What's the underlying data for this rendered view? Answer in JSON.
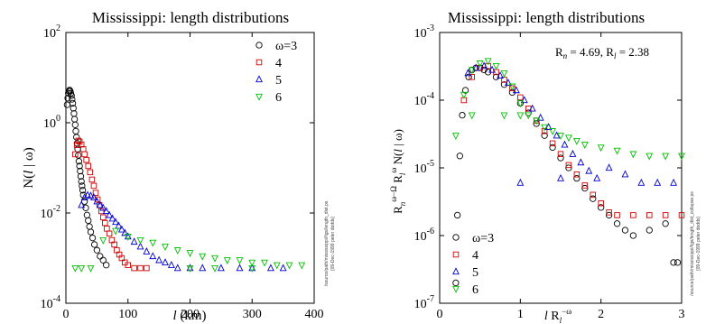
{
  "chart_data": [
    {
      "type": "scatter",
      "title": "Mississippi: length distributions",
      "xlabel": "l (km)",
      "ylabel": "N(l | ω)",
      "xlim": [
        0,
        400
      ],
      "ylim": [
        0.0001,
        100
      ],
      "yscale": "log",
      "xticks": [
        "0",
        "100",
        "200",
        "300",
        "400"
      ],
      "yticks": [
        {
          "base": "10",
          "exp": "2"
        },
        {
          "base": "10",
          "exp": "0"
        },
        {
          "base": "10",
          "exp": "-2"
        },
        {
          "base": "10",
          "exp": "-4"
        }
      ],
      "legend": "top-right",
      "side_notes": [
        "/source/path/mississippi/figs/length_dist.ps",
        "[09-Dec-1999 peter dodds]"
      ],
      "series": [
        {
          "name": "ω=3",
          "label": "ω=3",
          "marker": "circle",
          "color": "#000000",
          "points": [
            [
              2,
              2.5
            ],
            [
              3,
              3.5
            ],
            [
              4,
              4.5
            ],
            [
              5,
              5.0
            ],
            [
              6,
              5.3
            ],
            [
              7,
              5.0
            ],
            [
              8,
              4.5
            ],
            [
              9,
              4.0
            ],
            [
              10,
              3.3
            ],
            [
              11,
              2.7
            ],
            [
              12,
              2.1
            ],
            [
              13,
              1.6
            ],
            [
              14,
              1.2
            ],
            [
              15,
              0.9
            ],
            [
              16,
              0.65
            ],
            [
              17,
              0.48
            ],
            [
              18,
              0.35
            ],
            [
              19,
              0.26
            ],
            [
              20,
              0.19
            ],
            [
              21,
              0.14
            ],
            [
              22,
              0.11
            ],
            [
              23,
              0.085
            ],
            [
              24,
              0.065
            ],
            [
              25,
              0.05
            ],
            [
              26,
              0.04
            ],
            [
              27,
              0.032
            ],
            [
              28,
              0.025
            ],
            [
              30,
              0.018
            ],
            [
              32,
              0.013
            ],
            [
              34,
              0.009
            ],
            [
              36,
              0.0068
            ],
            [
              38,
              0.005
            ],
            [
              40,
              0.0038
            ],
            [
              43,
              0.0028
            ],
            [
              46,
              0.002
            ],
            [
              50,
              0.0015
            ],
            [
              55,
              0.0011
            ],
            [
              60,
              0.0009
            ],
            [
              65,
              0.0007
            ]
          ]
        },
        {
          "name": "4",
          "label": "4",
          "marker": "square",
          "color": "#d00000",
          "points": [
            [
              15,
              0.2
            ],
            [
              18,
              0.32
            ],
            [
              20,
              0.4
            ],
            [
              22,
              0.38
            ],
            [
              25,
              0.33
            ],
            [
              28,
              0.26
            ],
            [
              30,
              0.2
            ],
            [
              33,
              0.15
            ],
            [
              36,
              0.11
            ],
            [
              39,
              0.08
            ],
            [
              42,
              0.055
            ],
            [
              45,
              0.04
            ],
            [
              48,
              0.028
            ],
            [
              51,
              0.02
            ],
            [
              54,
              0.015
            ],
            [
              57,
              0.011
            ],
            [
              60,
              0.008
            ],
            [
              63,
              0.006
            ],
            [
              66,
              0.0045
            ],
            [
              70,
              0.0035
            ],
            [
              74,
              0.0025
            ],
            [
              78,
              0.002
            ],
            [
              82,
              0.0015
            ],
            [
              86,
              0.0012
            ],
            [
              90,
              0.001
            ],
            [
              95,
              0.0008
            ],
            [
              100,
              0.0007
            ],
            [
              110,
              0.0006
            ],
            [
              120,
              0.0006
            ],
            [
              130,
              0.0006
            ]
          ]
        },
        {
          "name": "5",
          "label": "5",
          "marker": "triangle",
          "color": "#0000d0",
          "points": [
            [
              25,
              0.015
            ],
            [
              30,
              0.022
            ],
            [
              35,
              0.025
            ],
            [
              40,
              0.024
            ],
            [
              45,
              0.022
            ],
            [
              50,
              0.018
            ],
            [
              55,
              0.015
            ],
            [
              60,
              0.013
            ],
            [
              65,
              0.011
            ],
            [
              70,
              0.009
            ],
            [
              75,
              0.0075
            ],
            [
              80,
              0.0063
            ],
            [
              85,
              0.0052
            ],
            [
              90,
              0.0043
            ],
            [
              95,
              0.0036
            ],
            [
              100,
              0.003
            ],
            [
              110,
              0.0023
            ],
            [
              120,
              0.0018
            ],
            [
              130,
              0.0014
            ],
            [
              140,
              0.0011
            ],
            [
              150,
              0.0009
            ],
            [
              160,
              0.0008
            ],
            [
              170,
              0.0007
            ],
            [
              180,
              0.0006
            ],
            [
              200,
              0.0006
            ],
            [
              220,
              0.0006
            ],
            [
              250,
              0.0006
            ],
            [
              280,
              0.0006
            ],
            [
              300,
              0.0006
            ],
            [
              330,
              0.0006
            ],
            [
              350,
              0.0006
            ]
          ]
        },
        {
          "name": "6",
          "label": "6",
          "marker": "triangle-down",
          "color": "#00c000",
          "points": [
            [
              15,
              0.0006
            ],
            [
              25,
              0.0006
            ],
            [
              40,
              0.0006
            ],
            [
              60,
              0.0025
            ],
            [
              80,
              0.004
            ],
            [
              100,
              0.003
            ],
            [
              120,
              0.0025
            ],
            [
              140,
              0.0022
            ],
            [
              160,
              0.0018
            ],
            [
              180,
              0.0015
            ],
            [
              200,
              0.0013
            ],
            [
              220,
              0.0011
            ],
            [
              240,
              0.001
            ],
            [
              260,
              0.0009
            ],
            [
              280,
              0.0009
            ],
            [
              300,
              0.0008
            ],
            [
              320,
              0.0008
            ],
            [
              340,
              0.0007
            ],
            [
              360,
              0.0007
            ],
            [
              380,
              0.0007
            ],
            [
              200,
              0.0006
            ],
            [
              240,
              0.0006
            ],
            [
              300,
              0.0006
            ]
          ]
        }
      ]
    },
    {
      "type": "scatter",
      "title": "Mississippi: length distributions",
      "xlabel": "l R_l^{-ω}",
      "ylabel": "R_n^{ω−Ω} R_l^{ω} N(l | ω)",
      "xlim": [
        0,
        3
      ],
      "ylim": [
        1e-07,
        0.001
      ],
      "yscale": "log",
      "xticks": [
        "0",
        "1",
        "2",
        "3"
      ],
      "yticks": [
        {
          "base": "10",
          "exp": "-3"
        },
        {
          "base": "10",
          "exp": "-4"
        },
        {
          "base": "10",
          "exp": "-5"
        },
        {
          "base": "10",
          "exp": "-6"
        },
        {
          "base": "10",
          "exp": "-7"
        }
      ],
      "annotation": {
        "text_n": "R_n = 4.69, R_l = 2.38",
        "rn": "4.69",
        "rl": "2.38"
      },
      "legend": "bottom-left",
      "side_notes": [
        "/source/path/mississippi/figs/length_dist_collapse.ps",
        "[09-Dec-1999 peter dodds]"
      ],
      "series": [
        {
          "name": "ω=3",
          "label": "ω=3",
          "marker": "circle",
          "color": "#000000",
          "points": [
            [
              0.2,
              2e-07
            ],
            [
              0.22,
              2e-06
            ],
            [
              0.25,
              1.5e-05
            ],
            [
              0.28,
              6e-05
            ],
            [
              0.32,
              0.00014
            ],
            [
              0.36,
              0.00022
            ],
            [
              0.4,
              0.00028
            ],
            [
              0.45,
              0.0003
            ],
            [
              0.5,
              0.0003
            ],
            [
              0.55,
              0.00028
            ],
            [
              0.6,
              0.00026
            ],
            [
              0.7,
              0.00022
            ],
            [
              0.8,
              0.00017
            ],
            [
              0.9,
              0.00013
            ],
            [
              1.0,
              9e-05
            ],
            [
              1.1,
              6.5e-05
            ],
            [
              1.2,
              4.5e-05
            ],
            [
              1.3,
              3e-05
            ],
            [
              1.4,
              2e-05
            ],
            [
              1.5,
              1.4e-05
            ],
            [
              1.6,
              1e-05
            ],
            [
              1.7,
              7e-06
            ],
            [
              1.8,
              5e-06
            ],
            [
              1.9,
              3.5e-06
            ],
            [
              2.0,
              2.6e-06
            ],
            [
              2.1,
              2e-06
            ],
            [
              2.2,
              1.5e-06
            ],
            [
              2.3,
              1.2e-06
            ],
            [
              2.4,
              1e-06
            ],
            [
              2.6,
              1.2e-06
            ],
            [
              2.8,
              1.5e-06
            ],
            [
              2.9,
              4e-07
            ],
            [
              2.95,
              4e-07
            ]
          ]
        },
        {
          "name": "4",
          "label": "4",
          "marker": "square",
          "color": "#d00000",
          "points": [
            [
              0.3,
              0.0001
            ],
            [
              0.4,
              0.00022
            ],
            [
              0.5,
              0.0003
            ],
            [
              0.6,
              0.00032
            ],
            [
              0.7,
              0.00026
            ],
            [
              0.8,
              0.0002
            ],
            [
              0.9,
              0.00015
            ],
            [
              1.0,
              0.00011
            ],
            [
              1.1,
              7.5e-05
            ],
            [
              1.2,
              5e-05
            ],
            [
              1.3,
              3.5e-05
            ],
            [
              1.4,
              2.3e-05
            ],
            [
              1.5,
              1.6e-05
            ],
            [
              1.6,
              1.1e-05
            ],
            [
              1.7,
              8e-06
            ],
            [
              1.8,
              5.5e-06
            ],
            [
              1.9,
              4e-06
            ],
            [
              2.0,
              3e-06
            ],
            [
              2.1,
              2.2e-06
            ],
            [
              2.2,
              2e-06
            ],
            [
              2.4,
              2e-06
            ],
            [
              2.6,
              2e-06
            ],
            [
              2.8,
              2e-06
            ],
            [
              3.0,
              2e-06
            ]
          ]
        },
        {
          "name": "5",
          "label": "5",
          "marker": "triangle",
          "color": "#0000d0",
          "points": [
            [
              0.35,
              0.00025
            ],
            [
              0.45,
              0.0003
            ],
            [
              0.55,
              0.00032
            ],
            [
              0.65,
              0.00028
            ],
            [
              0.75,
              0.00023
            ],
            [
              0.85,
              0.00018
            ],
            [
              0.95,
              0.00014
            ],
            [
              1.05,
              0.0001
            ],
            [
              1.15,
              7.5e-05
            ],
            [
              1.25,
              5.5e-05
            ],
            [
              1.35,
              4e-05
            ],
            [
              1.45,
              3e-05
            ],
            [
              1.55,
              2.2e-05
            ],
            [
              1.65,
              1.6e-05
            ],
            [
              1.75,
              1.2e-05
            ],
            [
              1.85,
              9e-06
            ],
            [
              1.95,
              7e-06
            ],
            [
              2.1,
              1e-05
            ],
            [
              2.3,
              8e-06
            ],
            [
              2.5,
              6e-06
            ],
            [
              2.7,
              6e-06
            ],
            [
              2.9,
              6e-06
            ],
            [
              1.0,
              6e-06
            ],
            [
              1.5,
              7e-06
            ]
          ]
        },
        {
          "name": "6",
          "label": "6",
          "marker": "triangle-down",
          "color": "#00c000",
          "points": [
            [
              0.2,
              3e-05
            ],
            [
              0.3,
              0.00012
            ],
            [
              0.4,
              0.00028
            ],
            [
              0.5,
              0.00035
            ],
            [
              0.6,
              0.00038
            ],
            [
              0.7,
              0.00032
            ],
            [
              0.8,
              0.00025
            ],
            [
              0.9,
              0.00016
            ],
            [
              1.0,
              9e-05
            ],
            [
              1.1,
              6e-05
            ],
            [
              1.2,
              5e-05
            ],
            [
              1.3,
              4e-05
            ],
            [
              1.4,
              3.5e-05
            ],
            [
              1.5,
              3e-05
            ],
            [
              1.6,
              2.8e-05
            ],
            [
              1.7,
              2.5e-05
            ],
            [
              1.8,
              2.2e-05
            ],
            [
              2.0,
              2e-05
            ],
            [
              2.2,
              1.8e-05
            ],
            [
              2.4,
              1.6e-05
            ],
            [
              2.6,
              1.5e-05
            ],
            [
              2.8,
              1.5e-05
            ],
            [
              3.0,
              1.5e-05
            ],
            [
              1.0,
              6e-05
            ],
            [
              0.4,
              6e-05
            ],
            [
              0.8,
              6e-05
            ]
          ]
        }
      ]
    }
  ]
}
